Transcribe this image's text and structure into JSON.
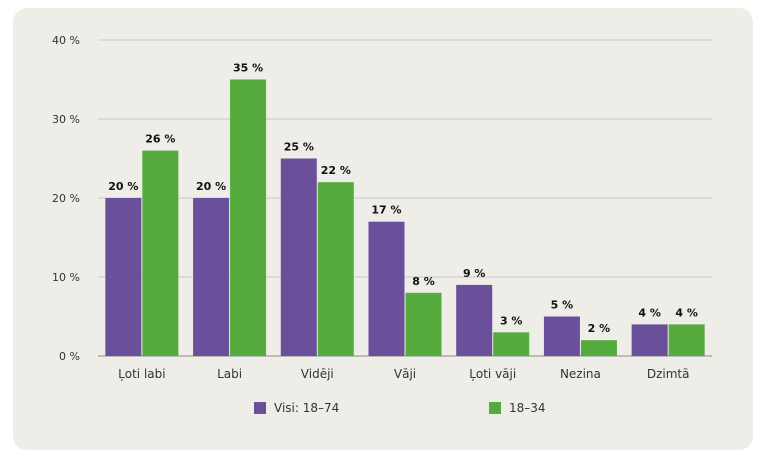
{
  "chart_data": {
    "type": "bar",
    "categories": [
      "Ļoti labi",
      "Labi",
      "Vidēji",
      "Vāji",
      "Ļoti vāji",
      "Nezina",
      "Dzimtā"
    ],
    "series": [
      {
        "name": "Visi: 18–74",
        "color": "#6a4f9a",
        "values": [
          20,
          20,
          25,
          17,
          9,
          5,
          4
        ]
      },
      {
        "name": "18–34",
        "color": "#55ab3d",
        "values": [
          26,
          35,
          22,
          8,
          3,
          2,
          4
        ]
      }
    ],
    "data_labels": [
      [
        "20 %",
        "20 %",
        "25 %",
        "17 %",
        "9 %",
        "5 %",
        "4 %"
      ],
      [
        "26 %",
        "35 %",
        "22 %",
        "8 %",
        "3 %",
        "2 %",
        "4 %"
      ]
    ],
    "yticks": [
      0,
      10,
      20,
      30,
      40
    ],
    "ytick_labels": [
      "0 %",
      "10 %",
      "20 %",
      "30 %",
      "40 %"
    ],
    "ylim": [
      0,
      40
    ],
    "grid": true,
    "legend_position": "bottom"
  }
}
